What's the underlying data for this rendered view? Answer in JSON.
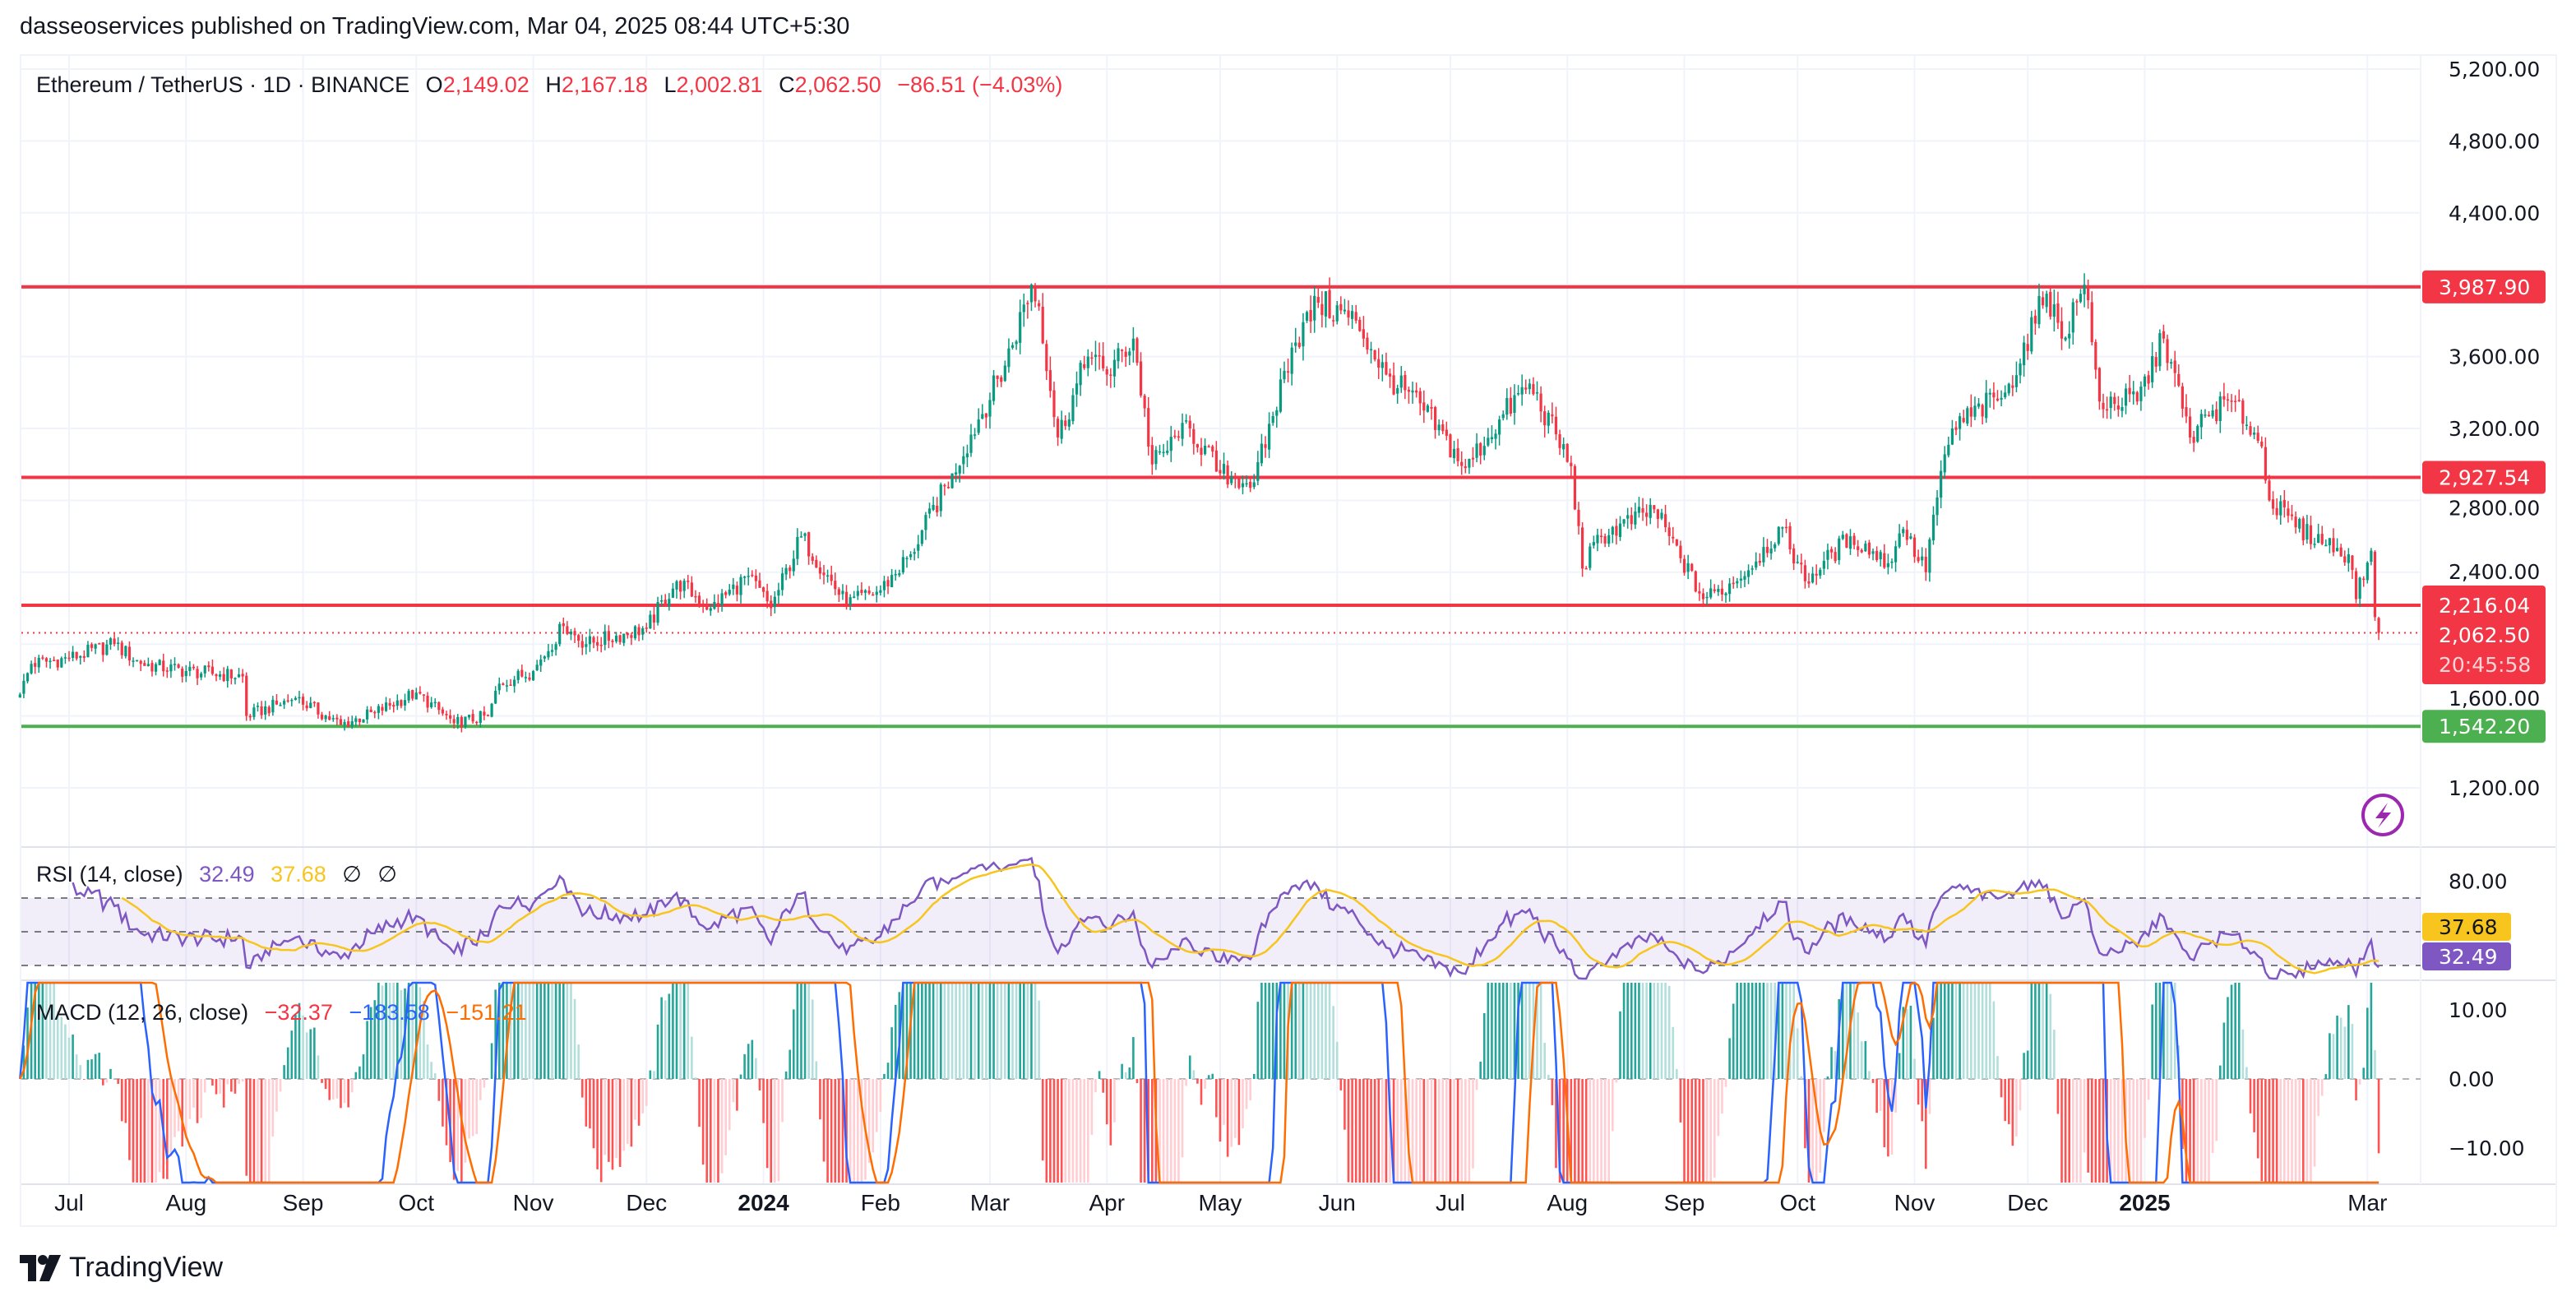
{
  "publisher": "dasseoservices published on TradingView.com, Mar 04, 2025 08:44 UTC+5:30",
  "legend": {
    "symbol": "Ethereum / TetherUS · 1D · BINANCE",
    "o_label": "O",
    "o": "2,149.02",
    "h_label": "H",
    "h": "2,167.18",
    "l_label": "L",
    "l": "2,002.81",
    "c_label": "C",
    "c": "2,062.50",
    "change": "−86.51 (−4.03%)"
  },
  "rsi_legend": {
    "title": "RSI (14, close)",
    "rsi": "32.49",
    "ma": "37.68",
    "n1": "∅",
    "n2": "∅"
  },
  "macd_legend": {
    "title": "MACD (12, 26, close)",
    "hist": "−32.37",
    "macd": "−183.58",
    "signal": "−151.21"
  },
  "footer": {
    "brand": "TradingView"
  },
  "colors": {
    "up": "#089981",
    "down": "#f23645",
    "support": "#4caf50",
    "rsi": "#7e57c2",
    "rsi_ma": "#f7c51e",
    "macd": "#2962ff",
    "signal": "#ff6d00",
    "alert": "#9c27b0"
  },
  "chart_data": {
    "type": "candlestick",
    "title": "Ethereum / TetherUS · 1D · BINANCE",
    "ylim": [
      1000,
      5300
    ],
    "price_ticks": [
      "5,200.00",
      "4,800.00",
      "4,400.00",
      "3,600.00",
      "3,200.00",
      "2,800.00",
      "2,400.00",
      "1,600.00",
      "1,200.00"
    ],
    "price_tick_values": [
      5200,
      4800,
      4400,
      3600,
      3200,
      2800,
      2400,
      1600,
      1200
    ],
    "horizontal_lines": [
      {
        "value": 3987.9,
        "label": "3,987.90",
        "color": "#f23645"
      },
      {
        "value": 2927.54,
        "label": "2,927.54",
        "color": "#f23645"
      },
      {
        "value": 2216.04,
        "label": "2,216.04",
        "color": "#f23645"
      },
      {
        "value": 1542.2,
        "label": "1,542.20",
        "color": "#4caf50"
      }
    ],
    "last_price": {
      "value": 2062.5,
      "label": "2,062.50",
      "countdown": "20:45:58"
    },
    "time_ticks": [
      {
        "date": "2023-07-01",
        "label": "Jul"
      },
      {
        "date": "2023-08-01",
        "label": "Aug"
      },
      {
        "date": "2023-09-01",
        "label": "Sep"
      },
      {
        "date": "2023-10-01",
        "label": "Oct"
      },
      {
        "date": "2023-11-01",
        "label": "Nov"
      },
      {
        "date": "2023-12-01",
        "label": "Dec"
      },
      {
        "date": "2024-01-01",
        "label": "2024",
        "bold": true
      },
      {
        "date": "2024-02-01",
        "label": "Feb"
      },
      {
        "date": "2024-03-01",
        "label": "Mar"
      },
      {
        "date": "2024-04-01",
        "label": "Apr"
      },
      {
        "date": "2024-05-01",
        "label": "May"
      },
      {
        "date": "2024-06-01",
        "label": "Jun"
      },
      {
        "date": "2024-07-01",
        "label": "Jul"
      },
      {
        "date": "2024-08-01",
        "label": "Aug"
      },
      {
        "date": "2024-09-01",
        "label": "Sep"
      },
      {
        "date": "2024-10-01",
        "label": "Oct"
      },
      {
        "date": "2024-11-01",
        "label": "Nov"
      },
      {
        "date": "2024-12-01",
        "label": "Dec"
      },
      {
        "date": "2025-01-01",
        "label": "2025",
        "bold": true
      },
      {
        "date": "2025-03-01",
        "label": "Mar"
      }
    ],
    "close_anchors": [
      [
        "2023-06-18",
        1720
      ],
      [
        "2023-06-21",
        1890
      ],
      [
        "2023-07-01",
        1920
      ],
      [
        "2023-07-13",
        2000
      ],
      [
        "2023-07-20",
        1890
      ],
      [
        "2023-08-01",
        1850
      ],
      [
        "2023-08-16",
        1820
      ],
      [
        "2023-08-17",
        1600
      ],
      [
        "2023-08-30",
        1700
      ],
      [
        "2023-09-11",
        1550
      ],
      [
        "2023-09-20",
        1620
      ],
      [
        "2023-10-01",
        1730
      ],
      [
        "2023-10-11",
        1560
      ],
      [
        "2023-10-20",
        1600
      ],
      [
        "2023-10-23",
        1780
      ],
      [
        "2023-11-01",
        1850
      ],
      [
        "2023-11-09",
        2100
      ],
      [
        "2023-11-15",
        2000
      ],
      [
        "2023-12-01",
        2090
      ],
      [
        "2023-12-09",
        2350
      ],
      [
        "2023-12-18",
        2200
      ],
      [
        "2023-12-28",
        2380
      ],
      [
        "2024-01-03",
        2200
      ],
      [
        "2024-01-11",
        2600
      ],
      [
        "2024-01-23",
        2220
      ],
      [
        "2024-02-01",
        2300
      ],
      [
        "2024-02-09",
        2500
      ],
      [
        "2024-02-20",
        2950
      ],
      [
        "2024-02-27",
        3250
      ],
      [
        "2024-03-05",
        3550
      ],
      [
        "2024-03-12",
        4000
      ],
      [
        "2024-03-14",
        3880
      ],
      [
        "2024-03-19",
        3150
      ],
      [
        "2024-03-27",
        3600
      ],
      [
        "2024-04-01",
        3500
      ],
      [
        "2024-04-08",
        3700
      ],
      [
        "2024-04-13",
        3000
      ],
      [
        "2024-04-20",
        3150
      ],
      [
        "2024-04-23",
        3200
      ],
      [
        "2024-05-01",
        2950
      ],
      [
        "2024-05-10",
        2900
      ],
      [
        "2024-05-20",
        3650
      ],
      [
        "2024-05-27",
        3900
      ],
      [
        "2024-06-06",
        3800
      ],
      [
        "2024-06-14",
        3500
      ],
      [
        "2024-06-24",
        3300
      ],
      [
        "2024-07-05",
        2980
      ],
      [
        "2024-07-14",
        3250
      ],
      [
        "2024-07-22",
        3450
      ],
      [
        "2024-08-02",
        2990
      ],
      [
        "2024-08-05",
        2420
      ],
      [
        "2024-08-10",
        2600
      ],
      [
        "2024-08-24",
        2750
      ],
      [
        "2024-09-06",
        2250
      ],
      [
        "2024-09-15",
        2350
      ],
      [
        "2024-09-27",
        2650
      ],
      [
        "2024-10-03",
        2350
      ],
      [
        "2024-10-15",
        2600
      ],
      [
        "2024-10-25",
        2450
      ],
      [
        "2024-10-29",
        2640
      ],
      [
        "2024-11-04",
        2400
      ],
      [
        "2024-11-06",
        2720
      ],
      [
        "2024-11-11",
        3200
      ],
      [
        "2024-11-25",
        3400
      ],
      [
        "2024-12-06",
        3950
      ],
      [
        "2024-12-10",
        3700
      ],
      [
        "2024-12-16",
        4000
      ],
      [
        "2024-12-20",
        3350
      ],
      [
        "2024-12-30",
        3350
      ],
      [
        "2025-01-06",
        3700
      ],
      [
        "2025-01-13",
        3150
      ],
      [
        "2025-01-19",
        3300
      ],
      [
        "2025-01-25",
        3350
      ],
      [
        "2025-02-01",
        3100
      ],
      [
        "2025-02-03",
        2800
      ],
      [
        "2025-02-10",
        2650
      ],
      [
        "2025-02-24",
        2500
      ],
      [
        "2025-02-26",
        2250
      ],
      [
        "2025-03-02",
        2520
      ],
      [
        "2025-03-03",
        2150
      ],
      [
        "2025-03-04",
        2062.5
      ]
    ],
    "rsi_ticks": [
      "80.00"
    ],
    "rsi_values": {
      "rsi": "32.49",
      "ma": "37.68"
    },
    "macd_ticks": [
      "10.00",
      "0.00",
      "−10.00"
    ],
    "macd_tick_values": [
      10,
      0,
      -10
    ]
  }
}
